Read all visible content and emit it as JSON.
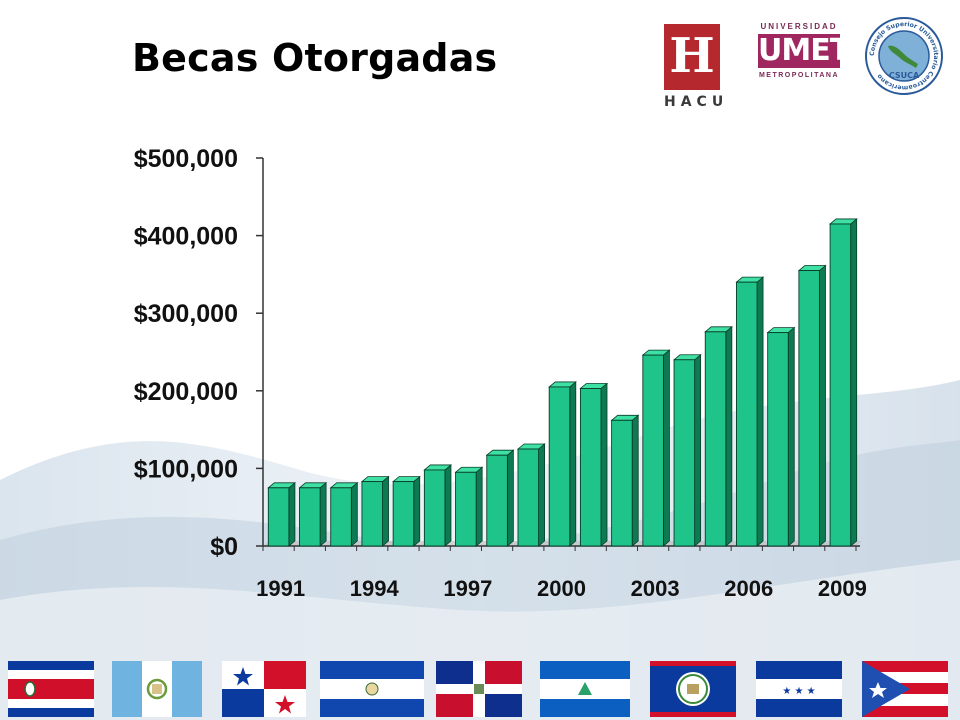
{
  "slide": {
    "title": "Becas Otorgadas"
  },
  "logos": {
    "hacu": {
      "letter": "H",
      "word": "HACU"
    },
    "umet": {
      "top": "UNIVERSIDAD",
      "main": "UMET",
      "bottom": "METROPOLITANA"
    },
    "csuca": {
      "center": "CSUCA",
      "ring": "Consejo Superior Universitario Centroamericano"
    }
  },
  "flags": [
    "Costa Rica",
    "Guatemala",
    "Panamá",
    "El Salvador",
    "República Dominicana",
    "Nicaragua",
    "Belize",
    "Honduras",
    "Puerto Rico"
  ],
  "chart_data": {
    "type": "bar",
    "title": "Becas Otorgadas",
    "xlabel": "",
    "ylabel": "",
    "categories": [
      "1991",
      "1992",
      "1993",
      "1994",
      "1995",
      "1996",
      "1997",
      "1998",
      "1999",
      "2000",
      "2001",
      "2002",
      "2003",
      "2004",
      "2005",
      "2006",
      "2007",
      "2008",
      "2009"
    ],
    "x_tick_labels": [
      "1991",
      "1994",
      "1997",
      "2000",
      "2003",
      "2006",
      "2009"
    ],
    "y_tick_labels": [
      "$0",
      "$100,000",
      "$200,000",
      "$300,000",
      "$400,000",
      "$500,000"
    ],
    "y_ticks": [
      0,
      100000,
      200000,
      300000,
      400000,
      500000
    ],
    "ylim": [
      0,
      500000
    ],
    "values": [
      75000,
      75000,
      75000,
      83000,
      83000,
      98000,
      95000,
      117000,
      125000,
      205000,
      203000,
      162000,
      246000,
      240000,
      276000,
      340000,
      275000,
      355000,
      415000
    ],
    "bar_color": "#1fc48a",
    "grid": false,
    "style": "3d"
  }
}
